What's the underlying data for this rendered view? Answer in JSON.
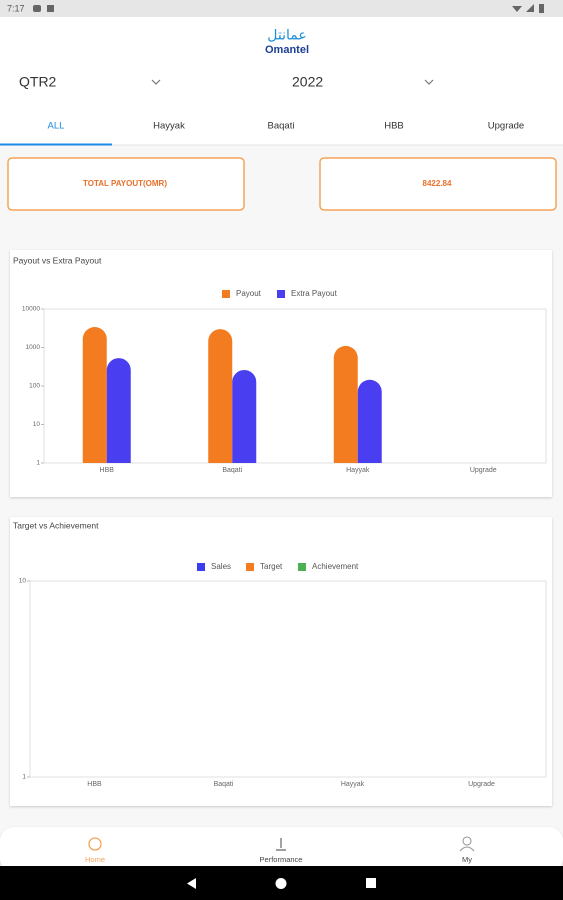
{
  "status_bar": {
    "time": "7:17"
  },
  "header": {
    "logo_arabic": "عمانتل",
    "logo_text": "Omantel"
  },
  "filters": {
    "quarter": "QTR2",
    "year": "2022"
  },
  "tabs": [
    "ALL",
    "Hayyak",
    "Baqati",
    "HBB",
    "Upgrade"
  ],
  "summary": {
    "label": "TOTAL PAYOUT(OMR)",
    "value": "8422.84"
  },
  "chart_data": [
    {
      "type": "bar",
      "title": "Payout vs Extra Payout",
      "categories": [
        "HBB",
        "Baqati",
        "Hayyak",
        "Upgrade"
      ],
      "series": [
        {
          "name": "Payout",
          "color": "#f47c20",
          "values": [
            3400,
            3000,
            1100,
            null
          ]
        },
        {
          "name": "Extra Payout",
          "color": "#4a3ff0",
          "values": [
            530,
            260,
            145,
            null
          ]
        }
      ],
      "log_scale": true,
      "ylim": [
        1,
        10000
      ],
      "yticks": [
        1,
        10,
        100,
        1000,
        10000
      ],
      "grid": false,
      "legend": "top"
    },
    {
      "type": "bar",
      "title": "Target vs Achievement",
      "categories": [
        "HBB",
        "Baqati",
        "Hayyak",
        "Upgrade"
      ],
      "series": [
        {
          "name": "Sales",
          "color": "#3d3df0",
          "values": [
            null,
            null,
            null,
            null
          ]
        },
        {
          "name": "Target",
          "color": "#f47c20",
          "values": [
            null,
            null,
            null,
            null
          ]
        },
        {
          "name": "Achievement",
          "color": "#4caf50",
          "values": [
            null,
            null,
            null,
            null
          ]
        }
      ],
      "log_scale": true,
      "ylim": [
        1,
        10
      ],
      "yticks": [
        1,
        10
      ],
      "grid": false,
      "legend": "top"
    }
  ],
  "bottom_nav": [
    "Home",
    "Performance",
    "My"
  ]
}
